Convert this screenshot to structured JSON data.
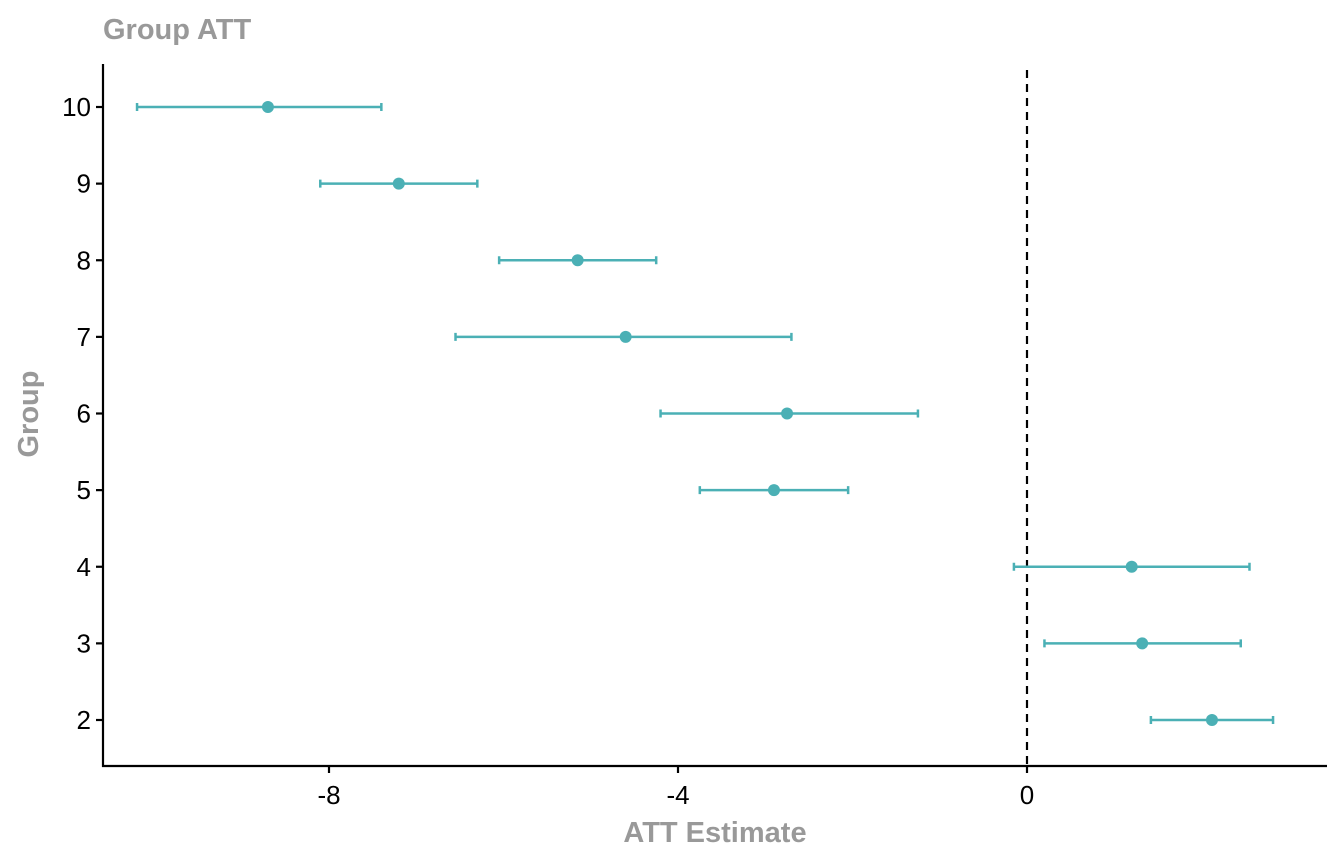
{
  "chart_data": {
    "type": "scatter",
    "title": "Group ATT",
    "xlabel": "ATT Estimate",
    "ylabel": "Group",
    "xlim": [
      -10.5,
      3.5
    ],
    "x_ticks": [
      -8,
      -4,
      0
    ],
    "x_tick_labels": [
      "-8",
      "-4",
      "0"
    ],
    "y_tick_labels": [
      "2",
      "3",
      "4",
      "5",
      "6",
      "7",
      "8",
      "9",
      "10"
    ],
    "reference_line": {
      "x": 0,
      "style": "dashed",
      "color": "#000000"
    },
    "grid": false,
    "legend": "none",
    "color": "#4BB0B5",
    "series": [
      {
        "points": [
          {
            "group": "10",
            "estimate": -8.7,
            "ci_low": -10.2,
            "ci_high": -7.4
          },
          {
            "group": "9",
            "estimate": -7.2,
            "ci_low": -8.1,
            "ci_high": -6.3
          },
          {
            "group": "8",
            "estimate": -5.15,
            "ci_low": -6.05,
            "ci_high": -4.25
          },
          {
            "group": "7",
            "estimate": -4.6,
            "ci_low": -6.55,
            "ci_high": -2.7
          },
          {
            "group": "6",
            "estimate": -2.75,
            "ci_low": -4.2,
            "ci_high": -1.25
          },
          {
            "group": "5",
            "estimate": -2.9,
            "ci_low": -3.75,
            "ci_high": -2.05
          },
          {
            "group": "4",
            "estimate": 1.2,
            "ci_low": -0.15,
            "ci_high": 2.55
          },
          {
            "group": "3",
            "estimate": 1.32,
            "ci_low": 0.2,
            "ci_high": 2.45
          },
          {
            "group": "2",
            "estimate": 2.12,
            "ci_low": 1.42,
            "ci_high": 2.82
          }
        ]
      }
    ]
  }
}
